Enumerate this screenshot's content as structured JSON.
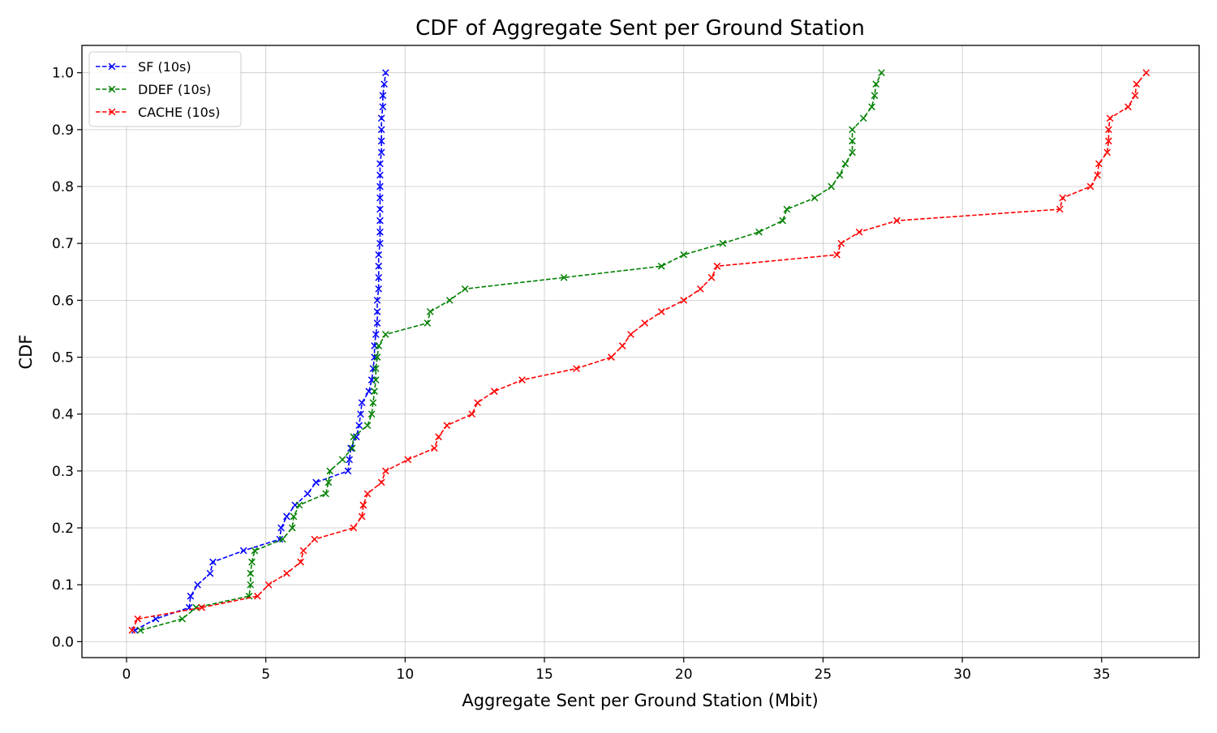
{
  "chart_data": {
    "type": "line",
    "title": "CDF of Aggregate Sent per Ground Station",
    "xlabel": "Aggregate Sent per Ground Station (Mbit)",
    "ylabel": "CDF",
    "xlim": [
      -1.6,
      38.5
    ],
    "ylim": [
      -0.028,
      1.048
    ],
    "xticks": [
      0,
      5,
      10,
      15,
      20,
      25,
      30,
      35
    ],
    "xtick_labels": [
      "0",
      "5",
      "10",
      "15",
      "20",
      "25",
      "30",
      "35"
    ],
    "yticks": [
      0.0,
      0.1,
      0.2,
      0.3,
      0.4,
      0.5,
      0.6,
      0.7,
      0.8,
      0.9,
      1.0
    ],
    "ytick_labels": [
      "0.0",
      "0.1",
      "0.2",
      "0.3",
      "0.4",
      "0.5",
      "0.6",
      "0.7",
      "0.8",
      "0.9",
      "1.0"
    ],
    "grid": true,
    "legend_position": "top-left",
    "series": [
      {
        "name": "SF (10s)",
        "color": "#0000ff",
        "marker": "x",
        "linestyle": "dashed",
        "x": [
          0.3,
          1.05,
          2.25,
          2.3,
          2.55,
          3.0,
          3.1,
          4.2,
          5.5,
          5.55,
          5.75,
          6.05,
          6.5,
          6.8,
          7.95,
          8.0,
          8.05,
          8.25,
          8.35,
          8.4,
          8.45,
          8.7,
          8.8,
          8.85,
          8.9,
          8.9,
          8.95,
          9.0,
          9.0,
          9.0,
          9.05,
          9.05,
          9.05,
          9.05,
          9.1,
          9.1,
          9.1,
          9.1,
          9.1,
          9.1,
          9.1,
          9.1,
          9.15,
          9.15,
          9.15,
          9.15,
          9.2,
          9.2,
          9.25,
          9.3
        ],
        "y": [
          0.02,
          0.04,
          0.06,
          0.08,
          0.1,
          0.12,
          0.14,
          0.16,
          0.18,
          0.2,
          0.22,
          0.24,
          0.26,
          0.28,
          0.3,
          0.32,
          0.34,
          0.36,
          0.38,
          0.4,
          0.42,
          0.44,
          0.46,
          0.48,
          0.5,
          0.52,
          0.54,
          0.56,
          0.58,
          0.6,
          0.62,
          0.64,
          0.66,
          0.68,
          0.7,
          0.72,
          0.74,
          0.76,
          0.78,
          0.8,
          0.82,
          0.84,
          0.86,
          0.88,
          0.9,
          0.92,
          0.94,
          0.96,
          0.98,
          1.0
        ]
      },
      {
        "name": "DDEF (10s)",
        "color": "#008000",
        "marker": "x",
        "linestyle": "dashed",
        "x": [
          0.5,
          2.0,
          2.5,
          4.4,
          4.45,
          4.45,
          4.5,
          4.6,
          5.6,
          5.95,
          6.0,
          6.2,
          7.15,
          7.25,
          7.3,
          7.75,
          8.1,
          8.15,
          8.65,
          8.8,
          8.85,
          8.9,
          8.95,
          8.95,
          9.0,
          9.05,
          9.3,
          10.8,
          10.9,
          11.6,
          12.15,
          15.7,
          19.2,
          20.0,
          21.4,
          22.7,
          23.55,
          23.7,
          24.7,
          25.3,
          25.6,
          25.8,
          26.05,
          26.05,
          26.05,
          26.45,
          26.75,
          26.85,
          26.9,
          27.1
        ],
        "y": [
          0.02,
          0.04,
          0.06,
          0.08,
          0.1,
          0.12,
          0.14,
          0.16,
          0.18,
          0.2,
          0.22,
          0.24,
          0.26,
          0.28,
          0.3,
          0.32,
          0.34,
          0.36,
          0.38,
          0.4,
          0.42,
          0.44,
          0.46,
          0.48,
          0.5,
          0.52,
          0.54,
          0.56,
          0.58,
          0.6,
          0.62,
          0.64,
          0.66,
          0.68,
          0.7,
          0.72,
          0.74,
          0.76,
          0.78,
          0.8,
          0.82,
          0.84,
          0.86,
          0.88,
          0.9,
          0.92,
          0.94,
          0.96,
          0.98,
          1.0
        ]
      },
      {
        "name": "CACHE (10s)",
        "color": "#ff0000",
        "marker": "x",
        "linestyle": "dashed",
        "x": [
          0.2,
          0.4,
          2.7,
          4.7,
          5.1,
          5.75,
          6.25,
          6.35,
          6.75,
          8.15,
          8.45,
          8.5,
          8.5,
          8.65,
          9.15,
          9.3,
          10.1,
          11.05,
          11.2,
          11.5,
          12.4,
          12.6,
          13.2,
          14.2,
          16.15,
          17.4,
          17.8,
          18.1,
          18.6,
          19.2,
          20.0,
          20.6,
          21.0,
          21.2,
          25.5,
          25.65,
          26.3,
          27.65,
          33.5,
          33.6,
          34.6,
          34.85,
          34.9,
          35.2,
          35.25,
          35.25,
          35.3,
          35.95,
          36.2,
          36.25,
          36.6
        ],
        "y": [
          0.02,
          0.04,
          0.06,
          0.08,
          0.1,
          0.12,
          0.14,
          0.16,
          0.18,
          0.2,
          0.22,
          0.24,
          0.24,
          0.26,
          0.28,
          0.3,
          0.32,
          0.34,
          0.36,
          0.38,
          0.4,
          0.42,
          0.44,
          0.46,
          0.48,
          0.5,
          0.52,
          0.54,
          0.56,
          0.58,
          0.6,
          0.62,
          0.64,
          0.66,
          0.68,
          0.7,
          0.72,
          0.74,
          0.76,
          0.78,
          0.8,
          0.82,
          0.84,
          0.86,
          0.88,
          0.9,
          0.92,
          0.94,
          0.96,
          0.98,
          1.0
        ]
      }
    ]
  }
}
